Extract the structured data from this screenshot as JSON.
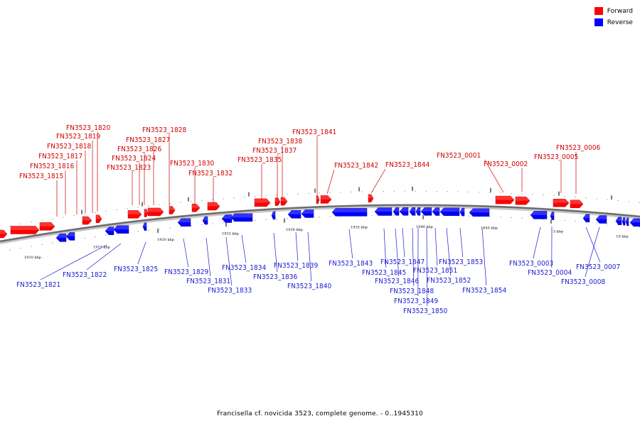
{
  "legend": {
    "forward_label": "Forward",
    "reverse_label": "Reverse",
    "forward_color": "#ff0000",
    "reverse_color": "#0000ff"
  },
  "footer_text": "Francisella cf. novicida 3523, complete genome. - 0..1945310",
  "scale_labels": [
    "1910 kbp",
    "1915 kbp",
    "1920 kbp",
    "1925 kbp",
    "1930 kbp",
    "1935 kbp",
    "1940 kbp",
    "1945 kbp",
    "5 kbp",
    "10 kbp"
  ],
  "forward_genes": [
    "FN3523_1815",
    "FN3523_1816",
    "FN3523_1817",
    "FN3523_1818",
    "FN3523_1819",
    "FN3523_1820",
    "FN3523_1823",
    "FN3523_1824",
    "FN3523_1826",
    "FN3523_1827",
    "FN3523_1828",
    "FN3523_1830",
    "FN3523_1832",
    "FN3523_1835",
    "FN3523_1837",
    "FN3523_1838",
    "FN3523_1841",
    "FN3523_1842",
    "FN3523_1844",
    "FN3523_0001",
    "FN3523_0002",
    "FN3523_0005",
    "FN3523_0006"
  ],
  "reverse_genes": [
    "FN3523_1821",
    "FN3523_1822",
    "FN3523_1825",
    "FN3523_1829",
    "FN3523_1831",
    "FN3523_1833",
    "FN3523_1834",
    "FN3523_1836",
    "FN3523_1839",
    "FN3523_1840",
    "FN3523_1843",
    "FN3523_1845",
    "FN3523_1846",
    "FN3523_1847",
    "FN3523_1848",
    "FN3523_1849",
    "FN3523_1850",
    "FN3523_1851",
    "FN3523_1852",
    "FN3523_1853",
    "FN3523_1854",
    "FN3523_0003",
    "FN3523_0004",
    "FN3523_0007",
    "FN3523_0008"
  ]
}
